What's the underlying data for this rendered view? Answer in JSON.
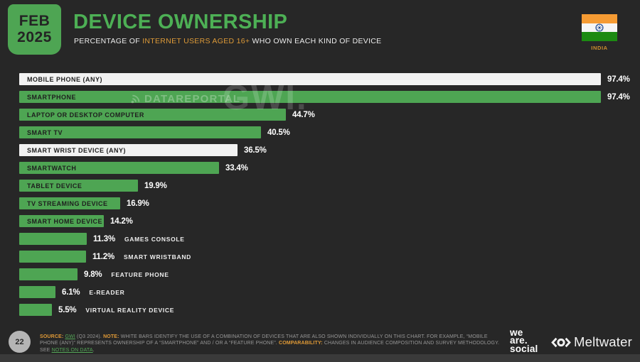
{
  "header": {
    "date_month": "FEB",
    "date_year": "2025",
    "title": "DEVICE OWNERSHIP",
    "subtitle_prefix": "PERCENTAGE OF ",
    "subtitle_highlight": "INTERNET USERS AGED 16+",
    "subtitle_suffix": " WHO OWN EACH KIND OF DEVICE",
    "country": "INDIA"
  },
  "chart_data": {
    "type": "bar",
    "orientation": "horizontal",
    "unit": "percent",
    "xlim": [
      0,
      100
    ],
    "grid": false,
    "legend": false,
    "title": "DEVICE OWNERSHIP",
    "categories": [
      "MOBILE PHONE (ANY)",
      "SMARTPHONE",
      "LAPTOP OR DESKTOP COMPUTER",
      "SMART TV",
      "SMART WRIST DEVICE (ANY)",
      "SMARTWATCH",
      "TABLET DEVICE",
      "TV STREAMING DEVICE",
      "SMART HOME DEVICE",
      "GAMES CONSOLE",
      "SMART WRISTBAND",
      "FEATURE PHONE",
      "E-READER",
      "VIRTUAL REALITY DEVICE"
    ],
    "values": [
      97.4,
      97.4,
      44.7,
      40.5,
      36.5,
      33.4,
      19.9,
      16.9,
      14.2,
      11.3,
      11.2,
      9.8,
      6.1,
      5.5
    ],
    "display_values": [
      "97.4%",
      "97.4%",
      "44.7%",
      "40.5%",
      "36.5%",
      "33.4%",
      "19.9%",
      "16.9%",
      "14.2%",
      "11.3%",
      "11.2%",
      "9.8%",
      "6.1%",
      "5.5%"
    ],
    "bar_colors": [
      "white",
      "green",
      "green",
      "green",
      "white",
      "green",
      "green",
      "green",
      "green",
      "green",
      "green",
      "green",
      "green",
      "green"
    ]
  },
  "watermarks": {
    "dataportal": "DATAREPORTAL",
    "gwi": "GWI."
  },
  "footer": {
    "page_number": "22",
    "source_label": "SOURCE:",
    "source_link": "GWI",
    "source_after": " (Q3 2024). ",
    "note_label": "NOTE:",
    "note_text": " WHITE BARS IDENTIFY THE USE OF A COMBINATION OF DEVICES THAT ARE ALSO SHOWN INDIVIDUALLY ON THIS CHART. FOR EXAMPLE, “MOBILE PHONE (ANY)” REPRESENTS OWNERSHIP OF A “SMARTPHONE” AND / OR A “FEATURE PHONE”. ",
    "comparability_label": "COMPARABILITY:",
    "comparability_text": " CHANGES IN AUDIENCE COMPOSITION AND SURVEY METHODOLOGY. SEE ",
    "notes_link": "NOTES ON DATA",
    "notes_after": ".",
    "brand_we": "we",
    "brand_are": "are.",
    "brand_social": "social",
    "brand_meltwater": "Meltwater"
  },
  "colors": {
    "background": "#272727",
    "accent_green": "#4ea553",
    "title_green": "#4db055",
    "accent_orange": "#dd9a38",
    "bar_white": "#f2f2f2",
    "link_green": "#55a758",
    "flag_saffron": "#f59b33",
    "flag_green": "#1c8a12"
  }
}
